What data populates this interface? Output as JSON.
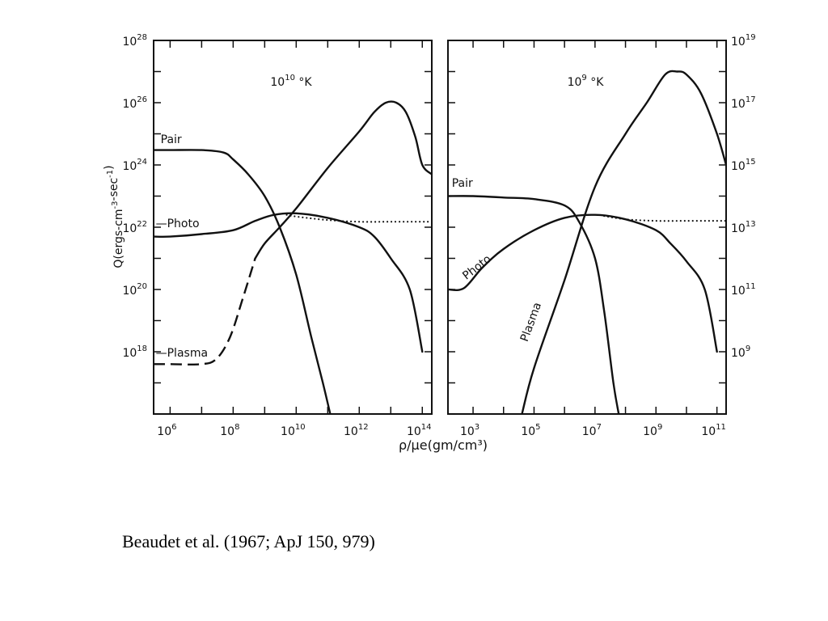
{
  "caption": "Beaudet et al. (1967; ApJ 150, 979)",
  "chart_data": [
    {
      "type": "line",
      "panel": "left",
      "temperature_label": "10^10 °K",
      "ylabel": "Q(ergs-cm^-3-sec^-1)",
      "xlabel": "ρ/μe(gm/cm³)",
      "x_scale": "log",
      "y_scale": "log",
      "xlim": [
        300000.0,
        200000000000000.0
      ],
      "ylim": [
        1e+16,
        1e+28
      ],
      "x_ticks": [
        {
          "value": 1000000.0,
          "label": "10^6"
        },
        {
          "value": 100000000.0,
          "label": "10^8"
        },
        {
          "value": 10000000000.0,
          "label": "10^10"
        },
        {
          "value": 1000000000000.0,
          "label": "10^12"
        },
        {
          "value": 100000000000000.0,
          "label": "10^14"
        }
      ],
      "y_ticks": [
        {
          "value": 1e+18,
          "label": "10^18"
        },
        {
          "value": 1e+20,
          "label": "10^20"
        },
        {
          "value": 1e+22,
          "label": "10^22"
        },
        {
          "value": 1e+24,
          "label": "10^24"
        },
        {
          "value": 1e+26,
          "label": "10^26"
        },
        {
          "value": 1e+28,
          "label": "10^28"
        }
      ],
      "series": [
        {
          "name": "Pair",
          "style": "solid",
          "x": [
            300000.0,
            1000000.0,
            10000000.0,
            50000000.0,
            100000000.0,
            300000000.0,
            1000000000.0,
            3000000000.0,
            10000000000.0,
            30000000000.0,
            70000000000.0,
            120000000000.0
          ],
          "y": [
            3e+24,
            3e+24,
            3e+24,
            2.5e+24,
            1.5e+24,
            5e+23,
            1e+23,
            1e+22,
            3e+20,
            3e+18,
            1e+17,
            1e+16
          ]
        },
        {
          "name": "Photo",
          "style": "solid",
          "x": [
            300000.0,
            1000000.0,
            10000000.0,
            100000000.0,
            500000000.0,
            2000000000.0,
            10000000000.0,
            100000000000.0,
            1000000000000.0,
            3000000000000.0,
            10000000000000.0,
            40000000000000.0,
            100000000000000.0
          ],
          "y": [
            5e+21,
            5e+21,
            6e+21,
            8e+21,
            1.6e+22,
            2.5e+22,
            2.8e+22,
            2e+22,
            1e+22,
            5e+21,
            1e+21,
            1e+20,
            1e+18
          ]
        },
        {
          "name": "Photo (extension)",
          "style": "dotted",
          "x": [
            5000000000.0,
            10000000000.0,
            100000000000.0,
            1000000000000.0,
            10000000000000.0,
            100000000000000.0,
            200000000000000.0
          ],
          "y": [
            2.5e+22,
            2.2e+22,
            1.7e+22,
            1.5e+22,
            1.5e+22,
            1.5e+22,
            1.5e+22
          ]
        },
        {
          "name": "Plasma",
          "style": "dashed",
          "x": [
            300000.0,
            1000000.0,
            10000000.0,
            30000000.0,
            80000000.0,
            200000000.0,
            500000000.0
          ],
          "y": [
            4e+17,
            4e+17,
            4e+17,
            6e+17,
            3e+18,
            5e+19,
            1e+21
          ]
        },
        {
          "name": "Plasma (solid)",
          "style": "solid",
          "x": [
            500000000.0,
            1000000000.0,
            3000000000.0,
            10000000000.0,
            100000000000.0,
            1000000000000.0,
            3000000000000.0,
            7000000000000.0,
            15000000000000.0,
            30000000000000.0,
            60000000000000.0,
            100000000000000.0,
            200000000000000.0
          ],
          "y": [
            1e+21,
            3e+21,
            1e+22,
            4e+22,
            8e+23,
            1.2e+25,
            5e+25,
            1e+26,
            1e+26,
            5e+25,
            8e+24,
            1e+24,
            5e+23
          ]
        }
      ],
      "labels": [
        {
          "text": "Pair",
          "x": 500000.0,
          "y": 5e+24
        },
        {
          "text": "—Photo",
          "x": 350000.0,
          "y": 1e+22
        },
        {
          "text": "—Plasma",
          "x": 350000.0,
          "y": 7e+17
        }
      ]
    },
    {
      "type": "line",
      "panel": "right",
      "temperature_label": "10^9 °K",
      "x_scale": "log",
      "y_scale": "log",
      "xlim": [
        150.0,
        200000000000.0
      ],
      "ylim": [
        10000000.0,
        1e+19
      ],
      "x_ticks": [
        {
          "value": 1000.0,
          "label": "10^3"
        },
        {
          "value": 100000.0,
          "label": "10^5"
        },
        {
          "value": 10000000.0,
          "label": "10^7"
        },
        {
          "value": 1000000000.0,
          "label": "10^9"
        },
        {
          "value": 100000000000.0,
          "label": "10^11"
        }
      ],
      "y_ticks": [
        {
          "value": 1000000000.0,
          "label": "10^9"
        },
        {
          "value": 100000000000.0,
          "label": "10^11"
        },
        {
          "value": 10000000000000.0,
          "label": "10^13"
        },
        {
          "value": 1000000000000000.0,
          "label": "10^15"
        },
        {
          "value": 1e+17,
          "label": "10^17"
        },
        {
          "value": 1e+19,
          "label": "10^19"
        }
      ],
      "series": [
        {
          "name": "Pair",
          "style": "solid",
          "x": [
            150.0,
            1000.0,
            10000.0,
            100000.0,
            1000000.0,
            3000000.0,
            10000000.0,
            20000000.0,
            40000000.0,
            60000000.0
          ],
          "y": [
            100000000000000.0,
            100000000000000.0,
            90000000000000.0,
            80000000000000.0,
            50000000000000.0,
            15000000000000.0,
            1000000000000.0,
            20000000000.0,
            100000000.0,
            10000000.0
          ]
        },
        {
          "name": "Photo",
          "style": "solid",
          "x": [
            150.0,
            500.0,
            2000.0,
            10000.0,
            100000.0,
            1000000.0,
            10000000.0,
            100000000.0,
            1000000000.0,
            3000000000.0,
            10000000000.0,
            40000000000.0,
            100000000000.0
          ],
          "y": [
            100000000000.0,
            110000000000.0,
            500000000000.0,
            2000000000000.0,
            8000000000000.0,
            20000000000000.0,
            25000000000000.0,
            18000000000000.0,
            8000000000000.0,
            3000000000000.0,
            800000000000.0,
            100000000000.0,
            1000000000.0
          ]
        },
        {
          "name": "Photo (extension)",
          "style": "dotted",
          "x": [
            20000000.0,
            100000000.0,
            1000000000.0,
            10000000000.0,
            100000000000.0,
            200000000000.0
          ],
          "y": [
            23000000000000.0,
            18000000000000.0,
            16000000000000.0,
            16000000000000.0,
            16000000000000.0,
            16000000000000.0
          ]
        },
        {
          "name": "Plasma",
          "style": "solid",
          "x": [
            40000.0,
            100000.0,
            1000000.0,
            10000000.0,
            100000000.0,
            500000000.0,
            2000000000.0,
            5000000000.0,
            10000000000.0,
            30000000000.0,
            100000000000.0,
            200000000000.0
          ],
          "y": [
            10000000.0,
            300000000.0,
            200000000000.0,
            200000000000000.0,
            1e+16,
            1e+17,
            8e+17,
            1e+18,
            8e+17,
            2e+17,
            1e+16,
            1000000000000000.0
          ]
        }
      ],
      "labels": [
        {
          "text": "Pair",
          "x": 200.0,
          "y": 200000000000000.0
        },
        {
          "text": "Photo",
          "x": 600.0,
          "y": 200000000000.0,
          "rotate": -38
        },
        {
          "text": "Plasma",
          "x": 60000.0,
          "y": 2000000000.0,
          "rotate": -70
        }
      ]
    }
  ]
}
